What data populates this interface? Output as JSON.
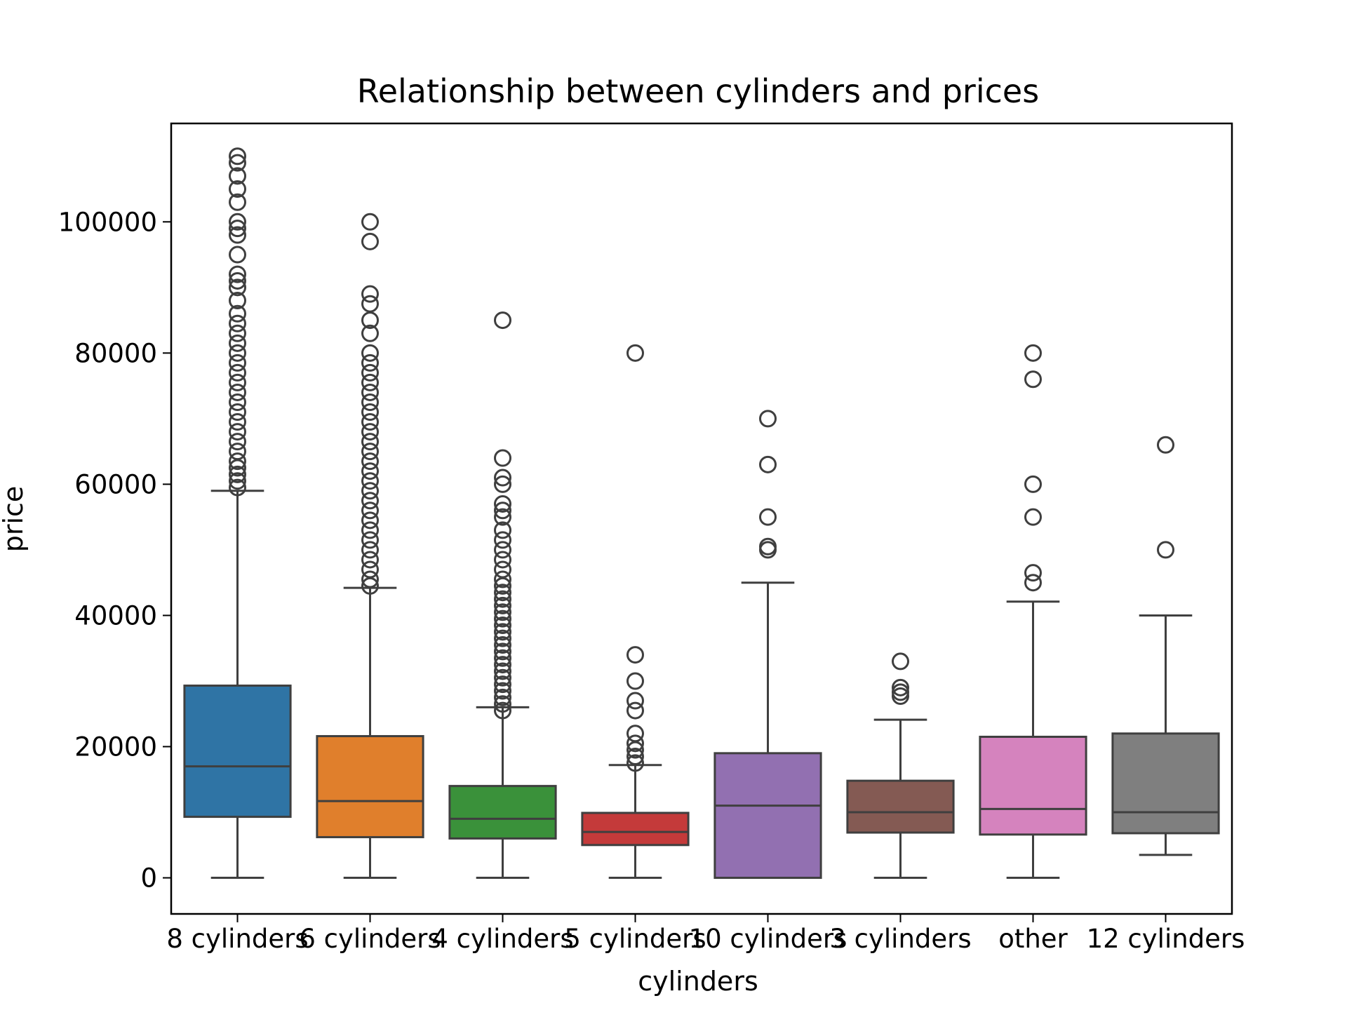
{
  "chart_data": {
    "type": "box",
    "title": "Relationship between cylinders and prices",
    "xlabel": "cylinders",
    "ylabel": "price",
    "ylim": [
      -5500,
      115000
    ],
    "yticks": [
      0,
      20000,
      40000,
      60000,
      80000,
      100000
    ],
    "grid": false,
    "series": [
      {
        "category": "8 cylinders",
        "color": "#2f74a5",
        "whisker_low": 0,
        "q1": 9300,
        "median": 17000,
        "q3": 29300,
        "whisker_high": 59000,
        "outliers": [
          59500,
          60500,
          61500,
          62500,
          63500,
          65000,
          66500,
          68000,
          69500,
          71000,
          72500,
          74000,
          75500,
          77000,
          78500,
          80000,
          81500,
          83000,
          84500,
          86000,
          88000,
          90000,
          91000,
          92000,
          95000,
          98000,
          99000,
          100000,
          103000,
          105000,
          107000,
          109000,
          110000
        ]
      },
      {
        "category": "6 cylinders",
        "color": "#e07f2c",
        "whisker_low": 0,
        "q1": 6200,
        "median": 11700,
        "q3": 21600,
        "whisker_high": 44200,
        "outliers": [
          44500,
          45500,
          47000,
          48500,
          50000,
          51500,
          53000,
          54500,
          56000,
          57500,
          59000,
          60500,
          62000,
          63500,
          65000,
          66500,
          68000,
          69500,
          71000,
          72500,
          74000,
          75500,
          77000,
          78500,
          80000,
          83000,
          85000,
          87500,
          89000,
          97000,
          100000
        ]
      },
      {
        "category": "4 cylinders",
        "color": "#3a913a",
        "whisker_low": 0,
        "q1": 6000,
        "median": 9000,
        "q3": 14000,
        "whisker_high": 26000,
        "outliers": [
          25500,
          26500,
          27500,
          28500,
          29500,
          30500,
          31500,
          32500,
          33500,
          34500,
          35500,
          36500,
          37500,
          38500,
          39500,
          40500,
          41500,
          42500,
          43500,
          44500,
          45500,
          47000,
          48500,
          50000,
          51500,
          53000,
          55000,
          56000,
          57000,
          60000,
          61000,
          64000,
          85000
        ]
      },
      {
        "category": "5 cylinders",
        "color": "#c43a3a",
        "whisker_low": 0,
        "q1": 5000,
        "median": 7000,
        "q3": 9900,
        "whisker_high": 17200,
        "outliers": [
          17500,
          18500,
          19500,
          20500,
          22000,
          25500,
          27000,
          30000,
          34000,
          80000
        ]
      },
      {
        "category": "10 cylinders",
        "color": "#9270b1",
        "whisker_low": 0,
        "q1": 0,
        "median": 11000,
        "q3": 19000,
        "whisker_high": 45000,
        "outliers": [
          50000,
          50500,
          55000,
          63000,
          70000
        ]
      },
      {
        "category": "3 cylinders",
        "color": "#845a53",
        "whisker_low": 0,
        "q1": 6900,
        "median": 10000,
        "q3": 14800,
        "whisker_high": 24100,
        "outliers": [
          27700,
          28300,
          29000,
          33000
        ]
      },
      {
        "category": "other",
        "color": "#d583be",
        "whisker_low": 0,
        "q1": 6600,
        "median": 10500,
        "q3": 21500,
        "whisker_high": 42100,
        "outliers": [
          45000,
          46500,
          55000,
          60000,
          76000,
          80000
        ]
      },
      {
        "category": "12 cylinders",
        "color": "#7f7f7f",
        "whisker_low": 3500,
        "q1": 6800,
        "median": 10000,
        "q3": 22000,
        "whisker_high": 40000,
        "outliers": [
          50000,
          66000
        ]
      }
    ]
  }
}
